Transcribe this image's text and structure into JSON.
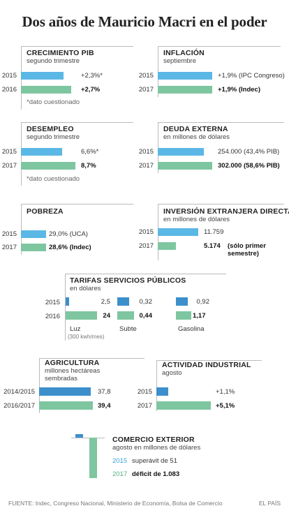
{
  "title": "Dos años de Mauricio Macri en el poder",
  "source": "FUENTE: Indec, Congreso Nacional, Ministerio de Economía, Bolsa de Comercio",
  "brand": "EL PAÍS",
  "colors": {
    "y2015": "#5bb7e5",
    "y2017": "#7ec6a0",
    "highlight": "#3d8fcb"
  },
  "chart_data": [
    {
      "type": "bar",
      "title": "CRECIMIENTO PIB",
      "subtitle": "segundo trimestre",
      "unit": "%",
      "categories": [
        "2015",
        "2016"
      ],
      "values": [
        2.3,
        2.7
      ],
      "labels": [
        "+2,3%*",
        "+2,7%"
      ],
      "note": "*dato cuestionado"
    },
    {
      "type": "bar",
      "title": "INFLACIÓN",
      "subtitle": "septiembre",
      "unit": "%",
      "categories": [
        "2015",
        "2017"
      ],
      "values": [
        1.9,
        1.9
      ],
      "labels": [
        "+1,9% (IPC Congreso)",
        "+1,9%  (Indec)"
      ]
    },
    {
      "type": "bar",
      "title": "DESEMPLEO",
      "subtitle": "segundo trimestre",
      "unit": "%",
      "categories": [
        "2015",
        "2017"
      ],
      "values": [
        6.6,
        8.7
      ],
      "labels": [
        "6,6%*",
        "8,7%"
      ],
      "note": "*dato cuestionado"
    },
    {
      "type": "bar",
      "title": "DEUDA EXTERNA",
      "subtitle": "en millones de dólares",
      "categories": [
        "2015",
        "2017"
      ],
      "values": [
        254000,
        302000
      ],
      "labels": [
        "254.000 (43,4% PIB)",
        "302.000 (58,6% PIB)"
      ]
    },
    {
      "type": "bar",
      "title": "POBREZA",
      "unit": "%",
      "categories": [
        "2015",
        "2017"
      ],
      "values": [
        29.0,
        28.6
      ],
      "labels": [
        "29,0% (UCA)",
        "28,6% (Indec)"
      ]
    },
    {
      "type": "bar",
      "title": "INVERSIÓN EXTRANJERA DIRECTA",
      "subtitle": "en millones de dólares",
      "categories": [
        "2015",
        "2017"
      ],
      "values": [
        11759,
        5174
      ],
      "labels": [
        "11.759",
        "5.174"
      ],
      "label_note": "(sólo primer semestre)"
    },
    {
      "type": "bar",
      "title": "TARIFAS SERVICIOS PÚBLICOS",
      "subtitle": "en dólares",
      "categories": [
        "2015",
        "2016"
      ],
      "series": [
        {
          "name": "Luz",
          "values": [
            2.5,
            24
          ],
          "labels": [
            "2,5",
            "24"
          ],
          "note": "(300 kwh/mes)"
        },
        {
          "name": "Subte",
          "values": [
            0.32,
            0.44
          ],
          "labels": [
            "0,32",
            "0,44"
          ]
        },
        {
          "name": "Gasolina",
          "values": [
            0.92,
            1.17
          ],
          "labels": [
            "0,92",
            "1,17"
          ]
        }
      ]
    },
    {
      "type": "bar",
      "title": "AGRICULTURA",
      "subtitle": "millones hectáreas sembradas",
      "categories": [
        "2014/2015",
        "2016/2017"
      ],
      "values": [
        37.8,
        39.4
      ],
      "labels": [
        "37,8",
        "39,4"
      ]
    },
    {
      "type": "bar",
      "title": "ACTIVIDAD INDUSTRIAL",
      "subtitle": "agosto",
      "unit": "%",
      "categories": [
        "2015",
        "2017"
      ],
      "values": [
        1.1,
        5.1
      ],
      "labels": [
        "+1,1%",
        "+5,1%"
      ]
    },
    {
      "type": "bar",
      "title": "COMERCIO EXTERIOR",
      "subtitle": "agosto en millones de dólares",
      "categories": [
        "2015",
        "2017"
      ],
      "values": [
        51,
        -1083
      ],
      "labels": [
        {
          "year": "2015",
          "text": "superávit de 51"
        },
        {
          "year": "2017",
          "text": "déficit de 1.083"
        }
      ]
    }
  ]
}
